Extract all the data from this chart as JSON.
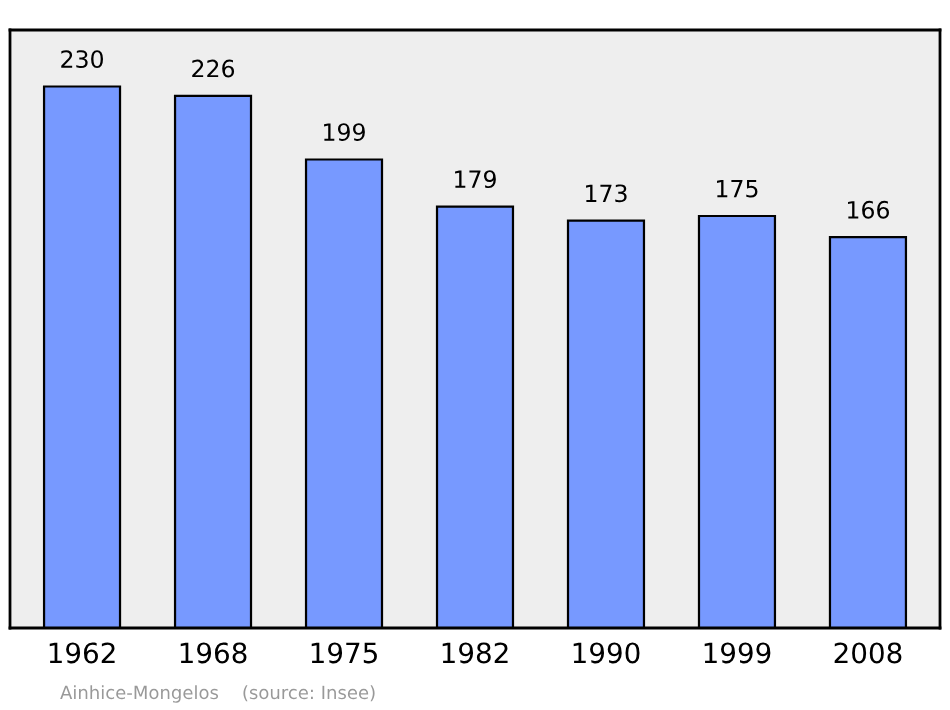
{
  "chart_data": {
    "type": "bar",
    "categories": [
      "1962",
      "1968",
      "1975",
      "1982",
      "1990",
      "1999",
      "2008"
    ],
    "values": [
      230,
      226,
      199,
      179,
      173,
      175,
      166
    ],
    "color": "#7799ff",
    "ylim": [
      0,
      254
    ],
    "tick_labels": "x",
    "data_labels": true,
    "grid": false,
    "annotations": [
      "Ainhice-Mongelos    (source: Insee)"
    ]
  }
}
